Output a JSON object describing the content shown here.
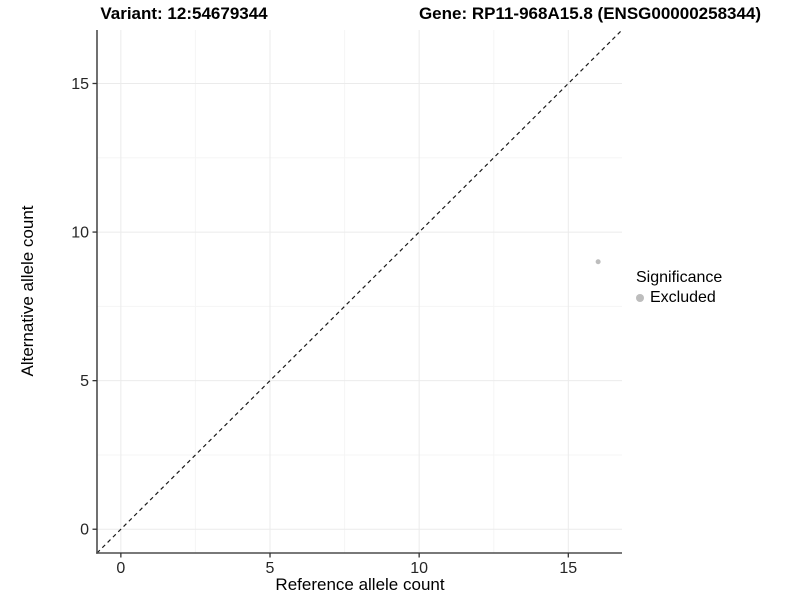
{
  "chart_data": {
    "type": "scatter",
    "titles": {
      "left": "Variant: 12:54679344",
      "right": "Gene: RP11-968A15.8 (ENSG00000258344)"
    },
    "xlabel": "Reference allele count",
    "ylabel": "Alternative allele count",
    "xlim": [
      -0.8,
      16.8
    ],
    "ylim": [
      -0.8,
      16.8
    ],
    "x_major_ticks": [
      0,
      5,
      10,
      15
    ],
    "y_major_ticks": [
      0,
      5,
      10,
      15
    ],
    "x_minor_ticks": [
      2.5,
      7.5,
      12.5
    ],
    "y_minor_ticks": [
      2.5,
      7.5,
      12.5
    ],
    "grid": true,
    "legend_position": "right",
    "reference_line": {
      "type": "identity y=x",
      "style": "dashed",
      "color": "#1a1a1a"
    },
    "series": [
      {
        "name": "Excluded",
        "color": "#bdbdbd",
        "points": [
          {
            "x": 16,
            "y": 9
          }
        ]
      }
    ],
    "legend": {
      "title": "Significance",
      "entries": [
        {
          "label": "Excluded",
          "color": "#bdbdbd"
        }
      ]
    }
  },
  "colors": {
    "background": "#ffffff",
    "axis_line": "#4d4d4d",
    "tick_mark": "#333333",
    "tick_label": "#262626",
    "grid_major": "#ebebeb",
    "grid_minor": "#f5f5f5",
    "point": "#bdbdbd",
    "dashed_line": "#1a1a1a"
  }
}
